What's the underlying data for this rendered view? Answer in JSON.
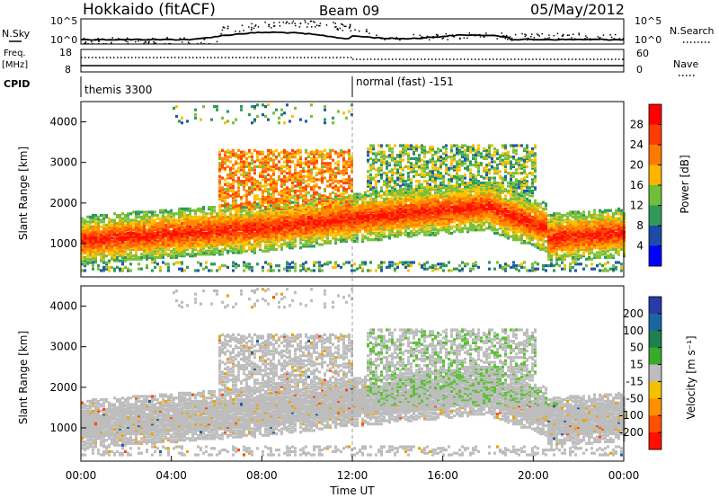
{
  "header": {
    "station": "Hokkaido (fitACF)",
    "beam": "Beam 09",
    "date": "05/May/2012"
  },
  "top_panels": {
    "nsky_label": "N.Sky",
    "nsky_ticks": [
      "10^5",
      "10^0"
    ],
    "nsearch_ticks": [
      "10^5",
      "10^0"
    ],
    "nsearch_label": "N.Search",
    "freq_label_1": "Freq.",
    "freq_label_2": "[MHz]",
    "freq_ticks": [
      "18",
      "8"
    ],
    "nave_ticks": [
      "60",
      "0"
    ],
    "nave_label": "Nave",
    "cpid_label": "CPID",
    "cpid_1": "themis 3300",
    "cpid_2": "normal (fast) -151"
  },
  "power_panel": {
    "ylabel": "Slant Range [km]",
    "colorbar_label": "Power [dB]",
    "colorbar_ticks": [
      "28",
      "24",
      "20",
      "16",
      "12",
      "8",
      "4"
    ],
    "colorbar_colors": [
      "#ff0000",
      "#ff3a00",
      "#ff7a00",
      "#ffb400",
      "#d8d000",
      "#7ccc00",
      "#2fa84a",
      "#1f7a7a",
      "#1a4aa0",
      "#0000ff"
    ]
  },
  "velocity_panel": {
    "ylabel": "Slant Range [km]",
    "colorbar_label": "Velocity [m s⁻¹]",
    "colorbar_ticks": [
      "200",
      "100",
      "50",
      "15",
      "-15",
      "-50",
      "-100",
      "-200"
    ],
    "colorbar_colors": [
      "#2a3ab0",
      "#1c5ea0",
      "#167a3c",
      "#2aa82a",
      "#88d040",
      "#bdbdbd",
      "#ffc000",
      "#ff9a00",
      "#ff5000",
      "#ff1000"
    ]
  },
  "x_axis": {
    "label": "Time UT",
    "ticks": [
      "00:00",
      "04:00",
      "08:00",
      "12:00",
      "16:00",
      "20:00",
      "00:00"
    ]
  },
  "chart_data": [
    {
      "type": "heatmap",
      "title": "Power",
      "xlabel": "Time UT",
      "ylabel": "Slant Range [km]",
      "x_range_hours": [
        0,
        24
      ],
      "y_ticks": [
        1000,
        2000,
        3000,
        4000
      ],
      "ylim": [
        180,
        4500
      ],
      "colorbar": {
        "label": "Power [dB]",
        "ticks": [
          4,
          8,
          12,
          16,
          20,
          24,
          28
        ]
      },
      "mode_change_hour": 12
    },
    {
      "type": "heatmap",
      "title": "Velocity",
      "xlabel": "Time UT",
      "ylabel": "Slant Range [km]",
      "x_range_hours": [
        0,
        24
      ],
      "y_ticks": [
        1000,
        2000,
        3000,
        4000
      ],
      "ylim": [
        180,
        4500
      ],
      "colorbar": {
        "label": "Velocity [m s-1]",
        "ticks": [
          -200,
          -100,
          -50,
          -15,
          15,
          50,
          100,
          200
        ]
      },
      "mode_change_hour": 12
    }
  ]
}
